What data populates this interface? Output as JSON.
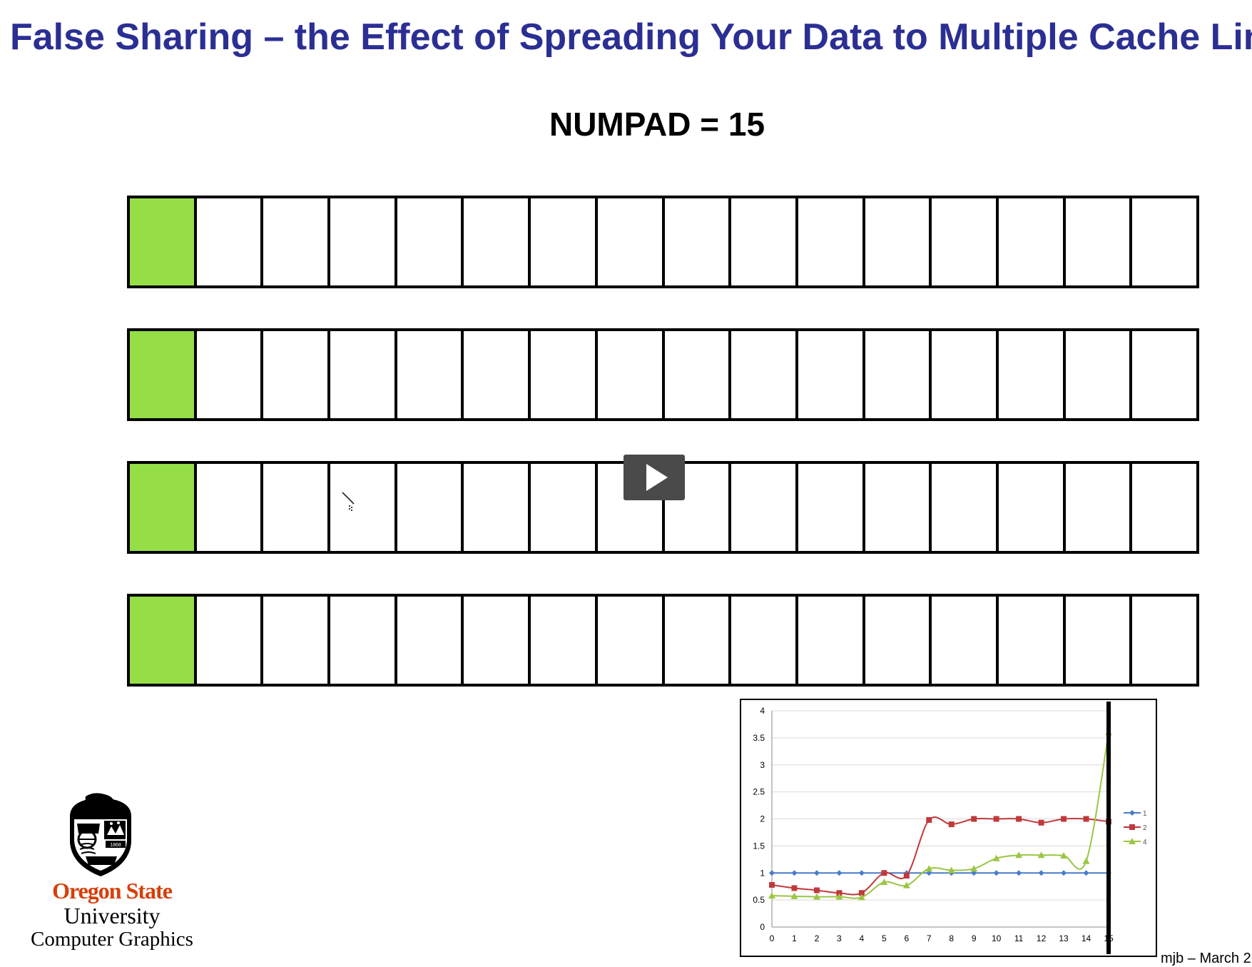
{
  "slide": {
    "title": "False Sharing – the Effect of Spreading Your Data to Multiple Cache Lines",
    "numpad_label": "NUMPAD = 15",
    "footer_credit": "mjb – March 2"
  },
  "cache_lines": [
    {
      "cells": 16,
      "used_cells": 1
    },
    {
      "cells": 16,
      "used_cells": 1
    },
    {
      "cells": 16,
      "used_cells": 1
    },
    {
      "cells": 16,
      "used_cells": 1
    }
  ],
  "colors": {
    "title": "#2b2f93",
    "used_cell": "#95de48",
    "series_1": "#4a7cc9",
    "series_2": "#c0393b",
    "series_4": "#9bc643",
    "osu_orange": "#d73f09"
  },
  "video": {
    "control_icon": "play-icon"
  },
  "logo": {
    "name": "Oregon State",
    "sub": "University",
    "dept": "Computer Graphics",
    "seal_year": "1868"
  },
  "chart_data": {
    "type": "line",
    "x": [
      0,
      1,
      2,
      3,
      4,
      5,
      6,
      7,
      8,
      9,
      10,
      11,
      12,
      13,
      14,
      15
    ],
    "ylim": [
      0,
      4
    ],
    "yticks": [
      "0",
      "0.5",
      "1",
      "1.5",
      "2",
      "2.5",
      "3",
      "3.5",
      "4"
    ],
    "xticks": [
      "0",
      "1",
      "2",
      "3",
      "4",
      "5",
      "6",
      "7",
      "8",
      "9",
      "10",
      "11",
      "12",
      "13",
      "14",
      "15"
    ],
    "grid": true,
    "legend_position": "right",
    "marker_line_x": 15,
    "series": [
      {
        "name": "1",
        "marker": "diamond",
        "values": [
          1,
          1,
          1,
          1,
          1,
          1,
          1,
          1,
          1,
          1,
          1,
          1,
          1,
          1,
          1,
          1
        ]
      },
      {
        "name": "2",
        "marker": "square",
        "values": [
          0.78,
          0.72,
          0.68,
          0.63,
          0.63,
          1.0,
          0.95,
          1.98,
          1.9,
          2.0,
          2.0,
          2.0,
          1.93,
          2.0,
          2.0,
          1.95
        ]
      },
      {
        "name": "4",
        "marker": "triangle",
        "values": [
          0.58,
          0.57,
          0.56,
          0.56,
          0.55,
          0.83,
          0.77,
          1.08,
          1.05,
          1.08,
          1.27,
          1.33,
          1.33,
          1.32,
          1.22,
          3.6
        ]
      }
    ]
  }
}
